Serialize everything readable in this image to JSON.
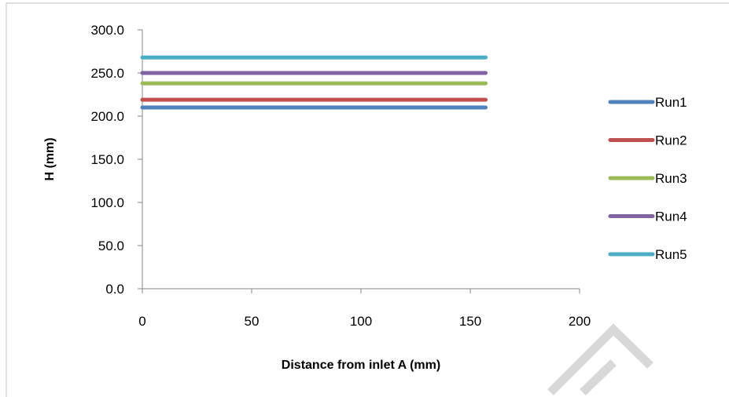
{
  "chart_data": {
    "type": "line",
    "title": "",
    "xlabel": "Distance from inlet A (mm)",
    "ylabel": "H (mm)",
    "xlim": [
      0,
      200
    ],
    "ylim": [
      0,
      300
    ],
    "x_ticks": [
      "0",
      "50",
      "100",
      "150",
      "200"
    ],
    "y_ticks": [
      "0.0",
      "50.0",
      "100.0",
      "150.0",
      "200.0",
      "250.0",
      "300.0"
    ],
    "x": [
      0,
      157
    ],
    "grid": false,
    "legend_position": "right",
    "series": [
      {
        "name": "Run1",
        "color": "#4f81bd",
        "values": [
          210,
          210
        ]
      },
      {
        "name": "Run2",
        "color": "#c0504d",
        "values": [
          219,
          219
        ]
      },
      {
        "name": "Run3",
        "color": "#9bbb59",
        "values": [
          238,
          238
        ]
      },
      {
        "name": "Run4",
        "color": "#8064a2",
        "values": [
          250,
          250
        ]
      },
      {
        "name": "Run5",
        "color": "#4bacc6",
        "values": [
          268,
          268
        ]
      }
    ]
  }
}
